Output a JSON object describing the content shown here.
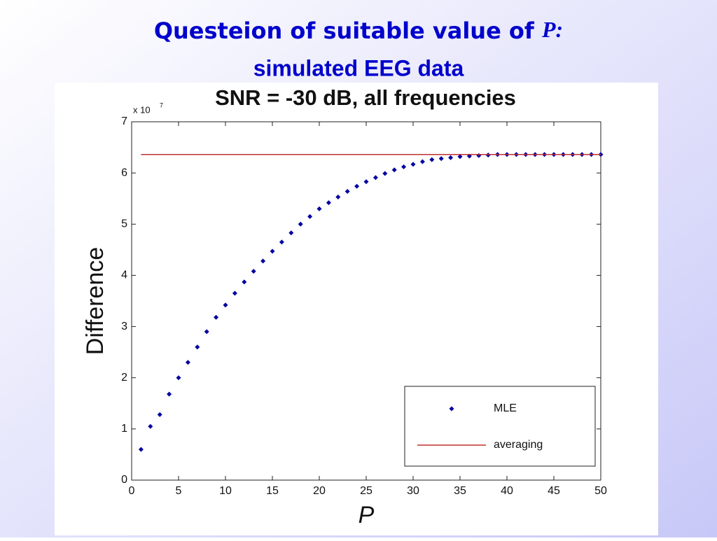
{
  "slide": {
    "title_text": "Questeion of suitable value of ",
    "title_variable": "P:",
    "subtitle": "simulated EEG data"
  },
  "chart_data": {
    "type": "scatter",
    "title": "SNR = -30 dB, all frequencies",
    "x_label": "P",
    "y_label": "Difference",
    "y_scale_label": "x 10",
    "y_scale_exponent": "7",
    "xlim": [
      0,
      50
    ],
    "ylim": [
      0,
      7
    ],
    "xticks": [
      0,
      5,
      10,
      15,
      20,
      25,
      30,
      35,
      40,
      45,
      50
    ],
    "yticks": [
      0,
      1,
      2,
      3,
      4,
      5,
      6,
      7
    ],
    "legend": "lower right",
    "series": [
      {
        "name": "MLE",
        "type": "scatter",
        "color": "#0000a0",
        "x": [
          1,
          2,
          3,
          4,
          5,
          6,
          7,
          8,
          9,
          10,
          11,
          12,
          13,
          14,
          15,
          16,
          17,
          18,
          19,
          20,
          21,
          22,
          23,
          24,
          25,
          26,
          27,
          28,
          29,
          30,
          31,
          32,
          33,
          34,
          35,
          36,
          37,
          38,
          39,
          40,
          41,
          42,
          43,
          44,
          45,
          46,
          47,
          48,
          49,
          50
        ],
        "values": [
          0.6,
          1.05,
          1.28,
          1.68,
          2.0,
          2.3,
          2.6,
          2.9,
          3.18,
          3.42,
          3.65,
          3.87,
          4.08,
          4.28,
          4.47,
          4.65,
          4.83,
          5.0,
          5.15,
          5.3,
          5.42,
          5.53,
          5.64,
          5.74,
          5.83,
          5.91,
          5.99,
          6.06,
          6.12,
          6.17,
          6.22,
          6.26,
          6.28,
          6.3,
          6.32,
          6.33,
          6.34,
          6.35,
          6.36,
          6.36,
          6.36,
          6.36,
          6.36,
          6.36,
          6.36,
          6.36,
          6.36,
          6.36,
          6.36,
          6.36
        ]
      },
      {
        "name": "averaging",
        "type": "line",
        "color": "#c03030",
        "x": [
          1,
          50
        ],
        "values": [
          6.36,
          6.36
        ]
      }
    ]
  }
}
